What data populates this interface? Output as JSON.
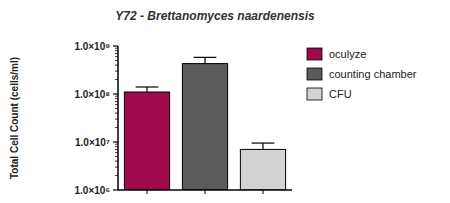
{
  "chart_data": {
    "type": "bar",
    "title": "Y72 - Brettanomyces naardenensis",
    "y_label": "Total Cell Count (cells/ml)",
    "categories": [
      "oculyze",
      "counting chamber",
      "CFU"
    ],
    "values": [
      110000000,
      430000000,
      7000000
    ],
    "errors": [
      30000000,
      150000000,
      2500000
    ],
    "colors": [
      "#9e0a4a",
      "#5a5a5a",
      "#d3d3d3"
    ],
    "log": "y",
    "ylim": [
      1000000,
      1000000000
    ],
    "yticks": [
      {
        "value": 1000000,
        "label": "1.0×10⁶"
      },
      {
        "value": 10000000,
        "label": "1.0×10⁷"
      },
      {
        "value": 100000000,
        "label": "1.0×10⁸"
      },
      {
        "value": 1000000000,
        "label": "1.0×10⁹"
      }
    ],
    "legend": "right",
    "tick_labels": "y",
    "grid": false
  }
}
